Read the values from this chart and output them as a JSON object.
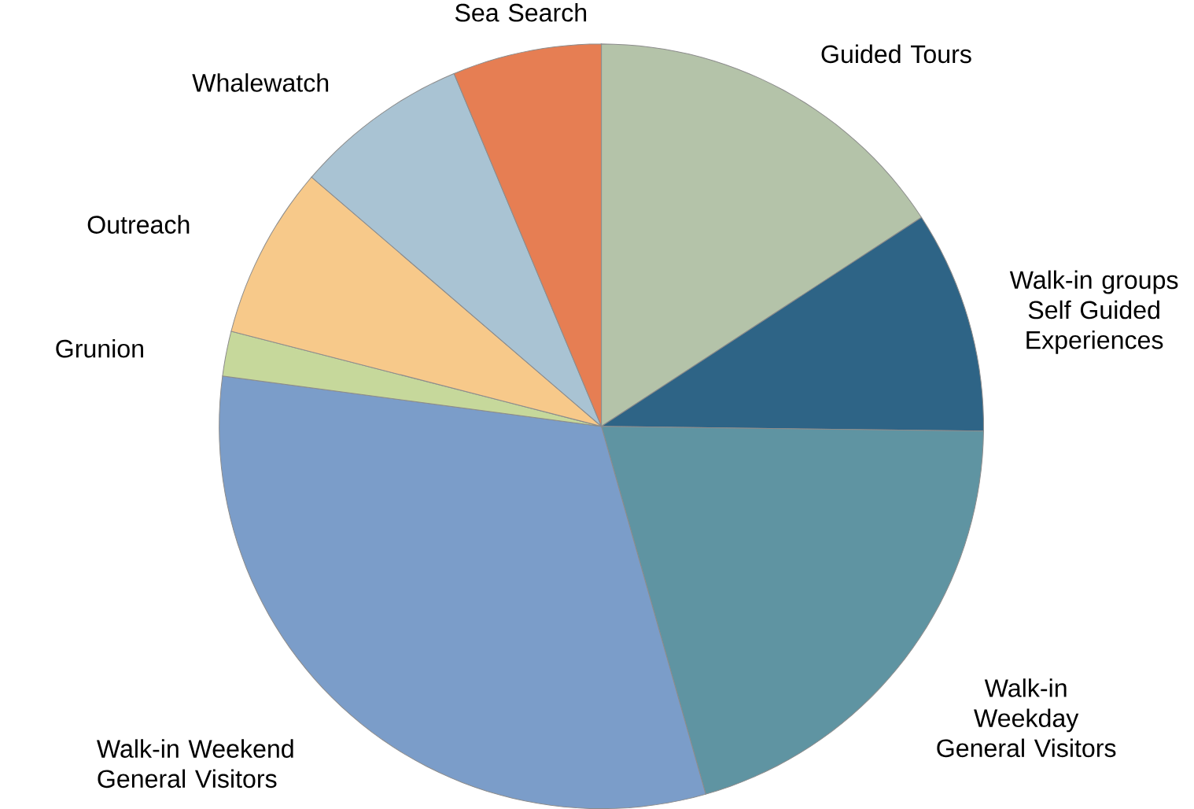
{
  "chart_data": {
    "type": "pie",
    "categories": [
      "Guided Tours",
      "Walk-in groups Self Guided Experiences",
      "Walk-in Weekday General Visitors",
      "Walk-in Weekend General Visitors",
      "Grunion",
      "Outreach",
      "Whalewatch",
      "Sea Search"
    ],
    "values": [
      15.8,
      9.4,
      20.4,
      31.5,
      1.9,
      7.3,
      7.4,
      6.3
    ],
    "colors": [
      "#b4c3a9",
      "#2e6486",
      "#5f94a2",
      "#7b9dc9",
      "#c6d89b",
      "#f7c98a",
      "#a9c3d3",
      "#e67e53"
    ]
  }
}
